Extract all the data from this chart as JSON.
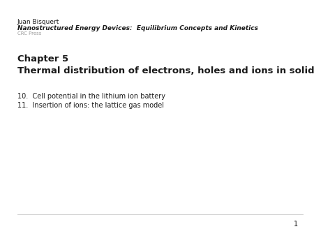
{
  "background_color": "#ffffff",
  "line1": "Juan Bisquert",
  "line2": "Nanostructured Energy Devices:  Equilibrium Concepts and Kinetics",
  "line3": "CRC Press",
  "chapter_label": "Chapter 5",
  "chapter_title": "Thermal distribution of electrons, holes and ions in solids",
  "item1": "10.  Cell potential in the lithium ion battery",
  "item2": "11.  Insertion of ions: the lattice gas model",
  "page_number": "1",
  "text_color": "#1a1a1a",
  "gray_color": "#999999",
  "line_color": "#cccccc",
  "line1_fs": 6.5,
  "line2_fs": 6.5,
  "line3_fs": 5.0,
  "chapter_label_fs": 9.5,
  "chapter_title_fs": 9.5,
  "item_fs": 7.0,
  "page_fs": 7.0
}
